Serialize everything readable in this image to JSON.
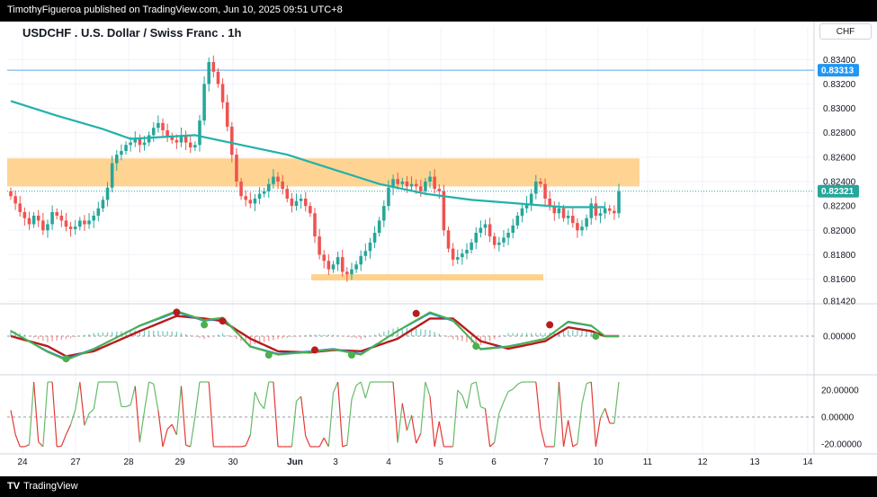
{
  "header": {
    "publisher_line": "TimothyFigueroa published on TradingView.com, Jun 10, 2025 09:51 UTC+8"
  },
  "footer": {
    "brand": "TradingView",
    "brand_mark": "TV"
  },
  "colors": {
    "bull": "#26a69a",
    "bear": "#ef5350",
    "ma": "#20b2aa",
    "zone": "#ffcc80",
    "hline": "#5aa9e6",
    "price_tag": "#2196f3",
    "osc_fast": "#4caf50",
    "osc_slow": "#b71c1c",
    "rsi_up": "#66bb6a",
    "rsi_down": "#e53935"
  },
  "chart_data": {
    "type": "candlestick",
    "title": "USDCHF . U.S. Dollar / Swiss Franc . 1h",
    "currency": "CHF",
    "ylim": [
      0.8142,
      0.8352
    ],
    "y_ticks": [
      "0.83400",
      "0.83200",
      "0.83000",
      "0.82800",
      "0.82600",
      "0.82400",
      "0.82200",
      "0.82000",
      "0.81800",
      "0.81600",
      "0.81420"
    ],
    "x_ticks": [
      "24",
      "27",
      "28",
      "29",
      "30",
      "Jun",
      "3",
      "4",
      "5",
      "6",
      "7",
      "10",
      "11",
      "12",
      "13",
      "14"
    ],
    "price_tags": [
      {
        "label": "0.83313",
        "value": 0.83313
      },
      {
        "label": "0.82321",
        "value": 0.82321
      }
    ],
    "horizontal_line": 0.83313,
    "supply_zone": [
      0.8236,
      0.8259
    ],
    "demand_zone": [
      0.8159,
      0.8164
    ],
    "close_series": [
      0.8228,
      0.8222,
      0.8215,
      0.821,
      0.8205,
      0.8212,
      0.8208,
      0.82,
      0.8205,
      0.8215,
      0.8212,
      0.8208,
      0.8203,
      0.8201,
      0.8203,
      0.8208,
      0.8205,
      0.8208,
      0.8212,
      0.8218,
      0.8225,
      0.8235,
      0.8255,
      0.8262,
      0.8265,
      0.827,
      0.8272,
      0.8275,
      0.827,
      0.8272,
      0.8278,
      0.8284,
      0.8288,
      0.8282,
      0.8277,
      0.8274,
      0.8272,
      0.8278,
      0.8272,
      0.8268,
      0.827,
      0.829,
      0.832,
      0.8338,
      0.833,
      0.832,
      0.8305,
      0.8285,
      0.8262,
      0.824,
      0.8228,
      0.8225,
      0.8222,
      0.8226,
      0.823,
      0.8232,
      0.8238,
      0.8244,
      0.824,
      0.8234,
      0.8226,
      0.822,
      0.8224,
      0.8226,
      0.822,
      0.8214,
      0.8195,
      0.818,
      0.8175,
      0.8168,
      0.8172,
      0.8178,
      0.8166,
      0.8164,
      0.8168,
      0.8172,
      0.8179,
      0.8183,
      0.819,
      0.8198,
      0.8208,
      0.822,
      0.8235,
      0.8242,
      0.8238,
      0.824,
      0.8236,
      0.8238,
      0.8236,
      0.8232,
      0.824,
      0.8244,
      0.8234,
      0.8232,
      0.82,
      0.8185,
      0.8176,
      0.8178,
      0.8181,
      0.8184,
      0.819,
      0.8198,
      0.8202,
      0.8205,
      0.8195,
      0.8188,
      0.819,
      0.8194,
      0.8198,
      0.8204,
      0.8212,
      0.8218,
      0.8222,
      0.823,
      0.824,
      0.8238,
      0.8226,
      0.822,
      0.8214,
      0.8218,
      0.821,
      0.8212,
      0.8206,
      0.82,
      0.8203,
      0.821,
      0.8222,
      0.8212,
      0.8214,
      0.8218,
      0.8216,
      0.8214,
      0.8232
    ],
    "moving_average": {
      "name": "MA",
      "points": [
        [
          0,
          0.8306
        ],
        [
          10,
          0.8294
        ],
        [
          20,
          0.8283
        ],
        [
          26,
          0.8275
        ],
        [
          40,
          0.8278
        ],
        [
          50,
          0.827
        ],
        [
          60,
          0.8262
        ],
        [
          70,
          0.825
        ],
        [
          80,
          0.8238
        ],
        [
          90,
          0.823
        ],
        [
          100,
          0.8225
        ],
        [
          110,
          0.8222
        ],
        [
          120,
          0.8219
        ],
        [
          129,
          0.8219
        ]
      ]
    },
    "oscillator": {
      "zero_label": "0.00000",
      "fast": [
        [
          0,
          0.2
        ],
        [
          8,
          -0.6
        ],
        [
          12,
          -0.9
        ],
        [
          18,
          -0.5
        ],
        [
          28,
          0.4
        ],
        [
          36,
          0.95
        ],
        [
          42,
          0.6
        ],
        [
          46,
          0.7
        ],
        [
          52,
          -0.4
        ],
        [
          58,
          -0.7
        ],
        [
          65,
          -0.6
        ],
        [
          70,
          -0.5
        ],
        [
          76,
          -0.7
        ],
        [
          84,
          0.2
        ],
        [
          91,
          0.9
        ],
        [
          96,
          0.6
        ],
        [
          102,
          -0.5
        ],
        [
          108,
          -0.4
        ],
        [
          116,
          -0.1
        ],
        [
          121,
          0.55
        ],
        [
          126,
          0.4
        ],
        [
          129,
          0.0
        ]
      ],
      "slow": [
        [
          0,
          0.0
        ],
        [
          8,
          -0.4
        ],
        [
          12,
          -0.8
        ],
        [
          18,
          -0.6
        ],
        [
          28,
          0.2
        ],
        [
          36,
          0.8
        ],
        [
          42,
          0.7
        ],
        [
          46,
          0.6
        ],
        [
          52,
          -0.1
        ],
        [
          58,
          -0.6
        ],
        [
          65,
          -0.65
        ],
        [
          70,
          -0.55
        ],
        [
          76,
          -0.6
        ],
        [
          84,
          -0.1
        ],
        [
          91,
          0.7
        ],
        [
          96,
          0.7
        ],
        [
          102,
          -0.2
        ],
        [
          108,
          -0.5
        ],
        [
          116,
          -0.2
        ],
        [
          121,
          0.35
        ],
        [
          126,
          0.2
        ],
        [
          129,
          0.0
        ]
      ],
      "markers": [
        {
          "x": 12,
          "value": -0.9,
          "kind": "bull"
        },
        {
          "x": 36,
          "value": 0.95,
          "kind": "bear"
        },
        {
          "x": 42,
          "value": 0.45,
          "kind": "bull"
        },
        {
          "x": 46,
          "value": 0.6,
          "kind": "bear"
        },
        {
          "x": 56,
          "value": -0.75,
          "kind": "bull"
        },
        {
          "x": 66,
          "value": -0.55,
          "kind": "bear"
        },
        {
          "x": 74,
          "value": -0.75,
          "kind": "bull"
        },
        {
          "x": 88,
          "value": 0.9,
          "kind": "bear"
        },
        {
          "x": 101,
          "value": -0.4,
          "kind": "bull"
        },
        {
          "x": 117,
          "value": 0.45,
          "kind": "bear"
        },
        {
          "x": 127,
          "value": 0.0,
          "kind": "bull"
        }
      ]
    },
    "rsi_panel": {
      "tick_labels": [
        "20.00000",
        "0.00000",
        "-20.00000"
      ],
      "tick_values": [
        20,
        0,
        -20
      ],
      "ylim": [
        -24,
        28
      ]
    }
  }
}
